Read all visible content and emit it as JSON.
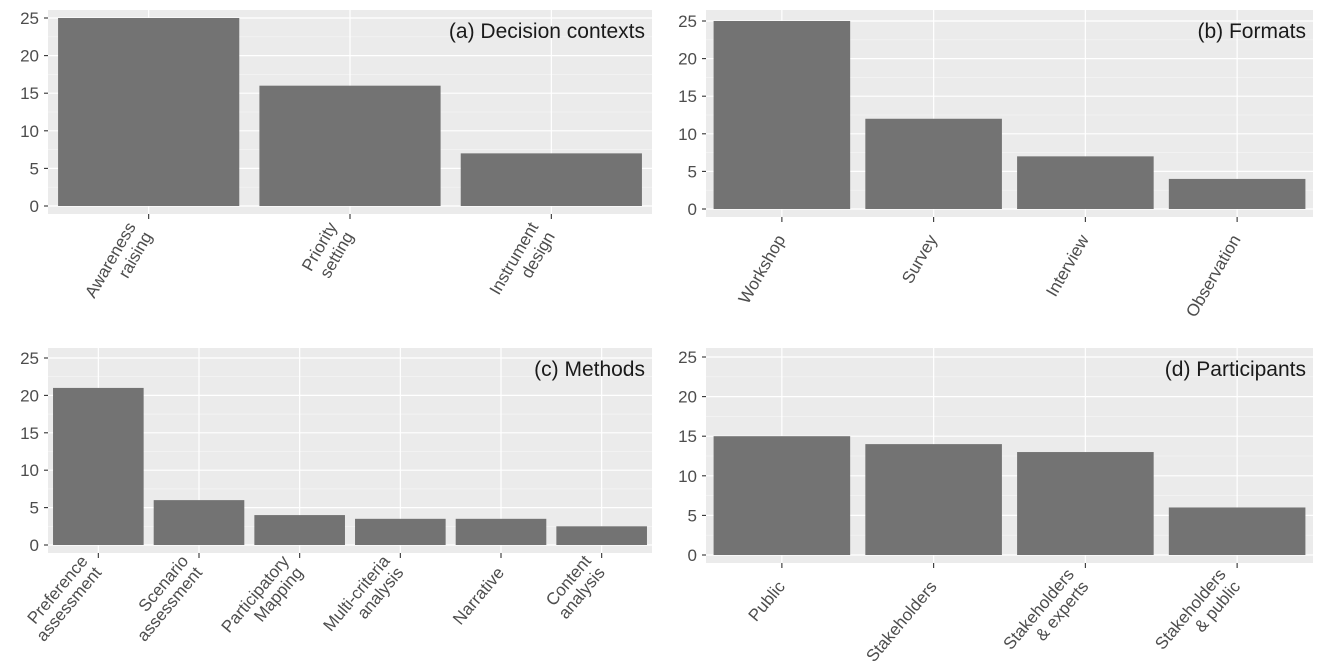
{
  "chart_data": [
    {
      "type": "bar",
      "title": "(a) Decision contexts",
      "categories": [
        [
          "Awareness",
          "raising"
        ],
        [
          "Priority",
          "setting"
        ],
        [
          "Instrument",
          "design"
        ]
      ],
      "values": [
        25,
        16,
        7
      ],
      "ylim": [
        0,
        25
      ],
      "yticks": [
        0,
        5,
        10,
        15,
        20,
        25
      ],
      "grid": true,
      "title_position": "top-right"
    },
    {
      "type": "bar",
      "title": "(b) Formats",
      "categories": [
        [
          "Workshop"
        ],
        [
          "Survey"
        ],
        [
          "Interview"
        ],
        [
          "Observation"
        ]
      ],
      "values": [
        25,
        12,
        7,
        4
      ],
      "ylim": [
        0,
        25
      ],
      "yticks": [
        0,
        5,
        10,
        15,
        20,
        25
      ],
      "grid": true,
      "title_position": "top-right"
    },
    {
      "type": "bar",
      "title": "(c) Methods",
      "categories": [
        [
          "Preference",
          "assessment"
        ],
        [
          "Scenario",
          "assessment"
        ],
        [
          "Participatory",
          "Mapping"
        ],
        [
          "Multi-criteria",
          "analysis"
        ],
        [
          "Narrative"
        ],
        [
          "Content",
          "analysis"
        ]
      ],
      "values": [
        21,
        6,
        4,
        3.5,
        3.5,
        2.5
      ],
      "ylim": [
        0,
        25
      ],
      "yticks": [
        0,
        5,
        10,
        15,
        20,
        25
      ],
      "grid": true,
      "title_position": "top-right"
    },
    {
      "type": "bar",
      "title": "(d) Participants",
      "categories": [
        [
          "Public"
        ],
        [
          "Stakeholders"
        ],
        [
          "Stakeholders",
          "& experts"
        ],
        [
          "Stakeholders",
          "& public"
        ]
      ],
      "values": [
        15,
        14,
        13,
        6
      ],
      "ylim": [
        0,
        25
      ],
      "yticks": [
        0,
        5,
        10,
        15,
        20,
        25
      ],
      "grid": true,
      "title_position": "top-right"
    }
  ]
}
